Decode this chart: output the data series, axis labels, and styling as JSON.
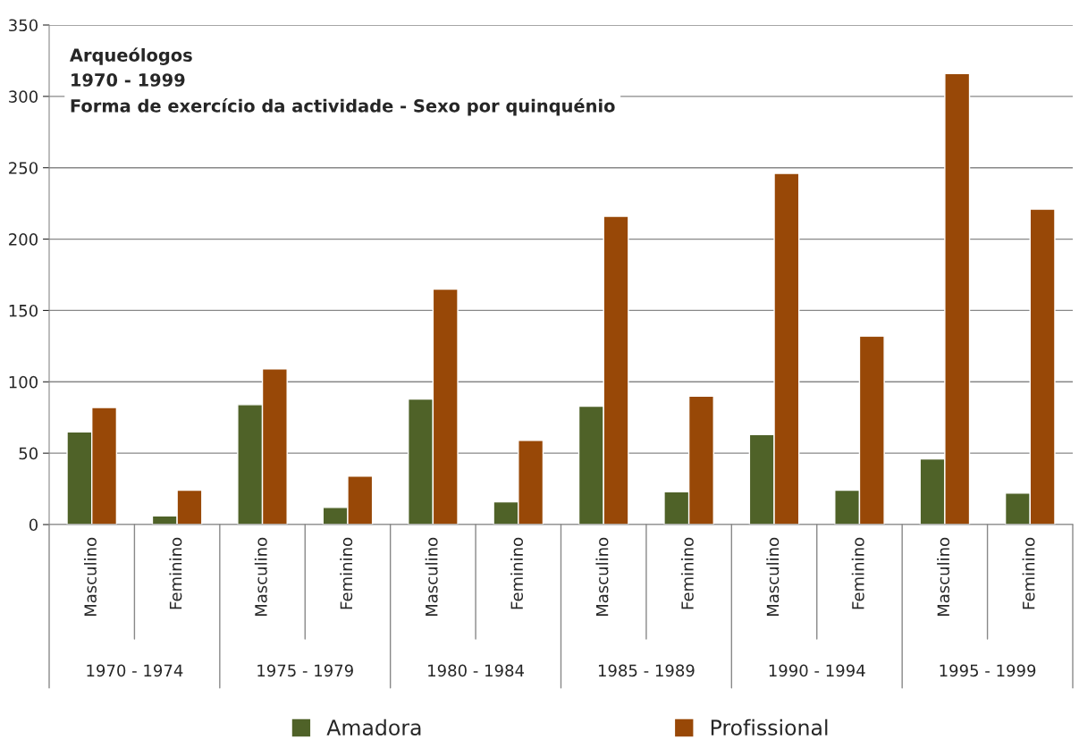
{
  "chart_data": {
    "type": "bar",
    "title": "Arqueólogos\n1970 - 1999\nForma de exercício da actividade - Sexo por quinquénio",
    "categories": [
      "Masculino",
      "Feminino",
      "Masculino",
      "Feminino",
      "Masculino",
      "Feminino",
      "Masculino",
      "Feminino",
      "Masculino",
      "Feminino",
      "Masculino",
      "Feminino"
    ],
    "annotations": [
      "1970 - 1974",
      "1975 - 1979",
      "1980 - 1984",
      "1985 - 1989",
      "1990 - 1994",
      "1995 - 1999"
    ],
    "series": [
      {
        "name": "Amadora",
        "color": "#4f6228",
        "values": [
          65,
          6,
          84,
          12,
          88,
          16,
          83,
          23,
          63,
          24,
          46,
          22
        ]
      },
      {
        "name": "Profissional",
        "color": "#984807",
        "values": [
          82,
          24,
          109,
          34,
          165,
          59,
          216,
          90,
          246,
          132,
          316,
          221
        ]
      }
    ],
    "ylim": [
      0,
      350
    ],
    "yticks": [
      0,
      50,
      100,
      150,
      200,
      250,
      300,
      350
    ],
    "grid": "y",
    "legend": "bottom"
  }
}
